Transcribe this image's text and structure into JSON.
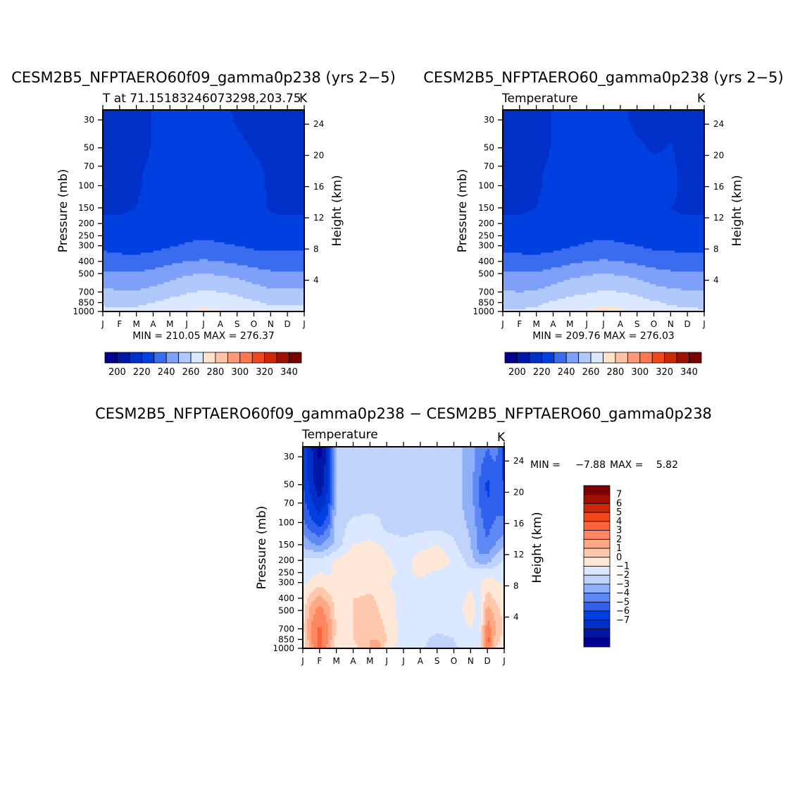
{
  "chart_data": [
    {
      "type": "heatmap",
      "id": "p1",
      "title": "CESM2B5_NFPTAERO60f09_gamma0p238 (yrs 2−5)",
      "subtitle_left": "T at 71.15183246073298,203.75",
      "subtitle_right": "K",
      "ylabel_left": "Pressure (mb)",
      "ylabel_right": "Height (km)",
      "x_ticks": [
        "J",
        "F",
        "M",
        "A",
        "M",
        "J",
        "J",
        "A",
        "S",
        "O",
        "N",
        "D",
        "J"
      ],
      "p_ticks": [
        30,
        50,
        70,
        100,
        150,
        200,
        250,
        300,
        400,
        500,
        700,
        850,
        1000
      ],
      "h_ticks": [
        4,
        8,
        12,
        16,
        20,
        24
      ],
      "ylim_mb": [
        1000,
        25
      ],
      "minmax": "MIN = 210.05 MAX = 276.37",
      "colorbar_labels": [
        "200",
        "220",
        "240",
        "260",
        "280",
        "300",
        "320",
        "340"
      ],
      "field": {
        "months": [
          0,
          1,
          2,
          3,
          4,
          5,
          6,
          7,
          8,
          9,
          10,
          11,
          12
        ],
        "levels": [
          1000,
          850,
          700,
          500,
          400,
          300,
          250,
          200,
          150,
          100,
          70,
          50,
          30,
          25
        ],
        "values": [
          [
            263,
            262,
            262,
            264,
            266,
            269,
            272,
            271,
            268,
            264,
            262,
            263,
            263
          ],
          [
            258,
            258,
            258,
            260,
            263,
            265,
            267,
            266,
            264,
            261,
            259,
            258,
            258
          ],
          [
            252,
            251,
            251,
            253,
            256,
            259,
            261,
            260,
            258,
            255,
            252,
            252,
            252
          ],
          [
            242,
            241,
            241,
            243,
            246,
            249,
            250,
            249,
            247,
            244,
            242,
            242,
            242
          ],
          [
            234,
            233,
            233,
            235,
            238,
            240,
            241,
            240,
            238,
            236,
            234,
            234,
            234
          ],
          [
            228,
            227,
            226,
            227,
            229,
            231,
            232,
            231,
            230,
            228,
            228,
            228,
            228
          ],
          [
            224,
            224,
            224,
            224,
            227,
            228,
            229,
            228,
            227,
            225,
            224,
            224,
            224
          ],
          [
            221,
            221,
            222,
            224,
            227,
            228,
            228,
            228,
            227,
            225,
            222,
            221,
            221
          ],
          [
            219,
            219,
            220,
            226,
            228,
            229,
            229,
            228,
            227,
            224,
            219,
            219,
            219
          ],
          [
            217,
            217,
            218,
            224,
            228,
            229,
            229,
            228,
            227,
            224,
            218,
            217,
            217
          ],
          [
            216,
            216,
            218,
            222,
            227,
            229,
            229,
            228,
            226,
            222,
            218,
            216,
            216
          ],
          [
            214,
            214,
            215,
            221,
            226,
            228,
            228,
            227,
            224,
            219,
            216,
            214,
            214
          ],
          [
            212,
            212,
            213,
            221,
            227,
            228,
            228,
            226,
            218,
            214,
            212,
            212,
            212
          ],
          [
            211,
            211,
            212,
            221,
            227,
            228,
            228,
            225,
            217,
            213,
            211,
            211,
            211
          ]
        ]
      }
    },
    {
      "type": "heatmap",
      "id": "p2",
      "title": "CESM2B5_NFPTAERO60_gamma0p238 (yrs 2−5)",
      "subtitle_left": "Temperature",
      "subtitle_right": "K",
      "ylabel_left": "Pressure (mb)",
      "ylabel_right": "Height (km)",
      "x_ticks": [
        "J",
        "F",
        "M",
        "A",
        "M",
        "J",
        "J",
        "A",
        "S",
        "O",
        "N",
        "D",
        "J"
      ],
      "p_ticks": [
        30,
        50,
        70,
        100,
        150,
        200,
        250,
        300,
        400,
        500,
        700,
        850,
        1000
      ],
      "h_ticks": [
        4,
        8,
        12,
        16,
        20,
        24
      ],
      "ylim_mb": [
        1000,
        25
      ],
      "minmax": "MIN = 209.76 MAX = 276.03",
      "colorbar_labels": [
        "200",
        "220",
        "240",
        "260",
        "280",
        "300",
        "320",
        "340"
      ],
      "field": {
        "months": [
          0,
          1,
          2,
          3,
          4,
          5,
          6,
          7,
          8,
          9,
          10,
          11,
          12
        ],
        "levels": [
          1000,
          850,
          700,
          500,
          400,
          300,
          250,
          200,
          150,
          100,
          70,
          50,
          30,
          25
        ],
        "values": [
          [
            261,
            261,
            262,
            265,
            268,
            271,
            273,
            272,
            268,
            264,
            262,
            262,
            261
          ],
          [
            257,
            257,
            258,
            261,
            264,
            266,
            267,
            266,
            264,
            261,
            259,
            258,
            257
          ],
          [
            251,
            250,
            251,
            254,
            257,
            259,
            261,
            260,
            258,
            254,
            252,
            251,
            251
          ],
          [
            241,
            241,
            241,
            244,
            247,
            249,
            250,
            249,
            247,
            244,
            242,
            241,
            241
          ],
          [
            233,
            233,
            233,
            235,
            238,
            240,
            241,
            240,
            238,
            235,
            234,
            233,
            233
          ],
          [
            227,
            227,
            226,
            227,
            229,
            231,
            232,
            231,
            230,
            228,
            228,
            227,
            227
          ],
          [
            223,
            223,
            224,
            225,
            227,
            228,
            229,
            228,
            226,
            224,
            223,
            223,
            223
          ],
          [
            221,
            221,
            222,
            224,
            227,
            228,
            228,
            228,
            226,
            224,
            221,
            221,
            221
          ],
          [
            219,
            219,
            220,
            226,
            228,
            229,
            229,
            228,
            226,
            224,
            220,
            219,
            219
          ],
          [
            217,
            217,
            218,
            224,
            228,
            229,
            229,
            228,
            227,
            226,
            222,
            217,
            217
          ],
          [
            216,
            216,
            218,
            222,
            227,
            229,
            229,
            228,
            226,
            224,
            222,
            216,
            216
          ],
          [
            214,
            214,
            215,
            221,
            226,
            228,
            228,
            227,
            223,
            218,
            221,
            214,
            214
          ],
          [
            212,
            212,
            213,
            221,
            227,
            228,
            228,
            225,
            216,
            212,
            216,
            212,
            212
          ],
          [
            211,
            211,
            212,
            221,
            227,
            228,
            228,
            225,
            215,
            211,
            214,
            211,
            211
          ]
        ]
      }
    },
    {
      "type": "heatmap",
      "id": "p3",
      "title": "CESM2B5_NFPTAERO60f09_gamma0p238 − CESM2B5_NFPTAERO60_gamma0p238",
      "subtitle_left": "Temperature",
      "subtitle_right": "K",
      "ylabel_left": "Pressure (mb)",
      "ylabel_right": "Height (km)",
      "x_ticks": [
        "J",
        "F",
        "M",
        "A",
        "M",
        "J",
        "J",
        "A",
        "S",
        "O",
        "N",
        "D",
        "J"
      ],
      "p_ticks": [
        30,
        50,
        70,
        100,
        150,
        200,
        250,
        300,
        400,
        500,
        700,
        850,
        1000
      ],
      "h_ticks": [
        4,
        8,
        12,
        16,
        20,
        24
      ],
      "ylim_mb": [
        1000,
        25
      ],
      "min_label": "MIN =",
      "min_value": "−7.88",
      "max_label": "MAX =",
      "max_value": "5.82",
      "colorbar_labels": [
        "7",
        "6",
        "5",
        "4",
        "3",
        "2",
        "1",
        "0",
        "−1",
        "−2",
        "−3",
        "−4",
        "−5",
        "−6",
        "−7"
      ],
      "field": {
        "months": [
          0,
          0.5,
          1,
          1.5,
          2,
          3,
          4,
          4.5,
          5,
          6,
          7,
          8,
          9,
          10,
          10.5,
          11,
          11.5,
          12
        ],
        "levels": [
          1000,
          850,
          700,
          500,
          400,
          300,
          250,
          200,
          150,
          100,
          70,
          50,
          30,
          25
        ],
        "values": [
          [
            1.2,
            3.5,
            5.5,
            3.5,
            1.2,
            1.5,
            3,
            3.5,
            1.5,
            0.2,
            0.2,
            -0.5,
            -0.2,
            0.6,
            0.2,
            5,
            2,
            1.2
          ],
          [
            1.5,
            4,
            5.5,
            4,
            1.5,
            2,
            3,
            3,
            2,
            0.5,
            0.3,
            -0.3,
            0,
            0.8,
            0.2,
            5.5,
            2.5,
            1.5
          ],
          [
            1.8,
            4.2,
            5.2,
            4,
            2,
            2,
            2.8,
            2.5,
            1.8,
            0.5,
            0.5,
            0.2,
            0.3,
            1,
            0.5,
            4.8,
            3,
            1.8
          ],
          [
            1.5,
            3.5,
            4.5,
            3.5,
            1.5,
            2,
            2.8,
            2,
            1.5,
            0.5,
            0.5,
            0.5,
            0.5,
            1.5,
            0.5,
            3.5,
            2.5,
            1.5
          ],
          [
            1.2,
            2.5,
            3.5,
            2.5,
            1.5,
            2,
            2.2,
            1.8,
            1.2,
            0.8,
            0.6,
            0.6,
            0.6,
            1.2,
            0.6,
            2.5,
            1.8,
            1.2
          ],
          [
            0.8,
            1.2,
            1.5,
            1.2,
            1,
            1.2,
            1.5,
            1.5,
            1,
            0.8,
            0.8,
            0.8,
            0.8,
            0.8,
            0.8,
            1.5,
            1.2,
            0.8
          ],
          [
            0.6,
            0.8,
            1,
            0.9,
            1.2,
            1.5,
            1.5,
            1.6,
            1.2,
            0.8,
            1.2,
            0.8,
            0.6,
            0.3,
            0.5,
            0.6,
            0.5,
            0.6
          ],
          [
            0.2,
            0.4,
            0.3,
            0.6,
            1.2,
            2,
            2,
            2,
            1.2,
            0.5,
            1.5,
            1.8,
            0.8,
            -0.5,
            -1.5,
            -1.5,
            -0.5,
            0.2
          ],
          [
            -1.2,
            -1.8,
            -2.2,
            -1.5,
            -0.6,
            1,
            1.2,
            1,
            0.6,
            0.2,
            0.6,
            1,
            0.2,
            -1,
            -2.5,
            -2.8,
            -2,
            -1.2
          ],
          [
            -2.8,
            -3.8,
            -4.5,
            -3.5,
            -0.5,
            0.2,
            0.3,
            0.2,
            -0.5,
            -0.5,
            -0.5,
            -0.5,
            -0.5,
            -1.2,
            -2.5,
            -3.5,
            -2.8,
            -2.8
          ],
          [
            -3.5,
            -4.8,
            -5.8,
            -4.5,
            -0.8,
            -0.4,
            -0.4,
            -0.4,
            -0.5,
            -0.5,
            -0.5,
            -0.5,
            -0.5,
            -1.5,
            -3,
            -4,
            -3.5,
            -3.5
          ],
          [
            -4,
            -5.5,
            -6.8,
            -5,
            -0.8,
            -0.5,
            -0.5,
            -0.5,
            -0.5,
            -0.5,
            -0.5,
            -0.5,
            -0.5,
            -1.5,
            -3,
            -4.2,
            -3.5,
            -4
          ],
          [
            -4.5,
            -5.8,
            -7.2,
            -5.5,
            -0.8,
            -0.5,
            -0.5,
            -0.5,
            -0.5,
            -0.5,
            -0.5,
            -0.5,
            -0.5,
            -1.5,
            -2.6,
            -3.2,
            -2.8,
            -4.5
          ],
          [
            -4.5,
            -5.8,
            -7.5,
            -5.5,
            -0.8,
            -0.5,
            -0.5,
            -0.5,
            -0.5,
            -0.5,
            -0.5,
            -0.5,
            -0.5,
            -1.5,
            -2.4,
            -3,
            -2.6,
            -4.5
          ]
        ]
      }
    }
  ],
  "colors": {
    "abs_fill": [
      "#000090",
      "#0018a8",
      "#0030c8",
      "#0040e0",
      "#3a6cf0",
      "#7ea0f8",
      "#b0c8fb",
      "#dbe8ff",
      "#ffe2cc",
      "#ffc2a4",
      "#ff9a78",
      "#ff7850",
      "#f04818",
      "#cc2808",
      "#a01000",
      "#780000"
    ],
    "diff_fill": [
      "#000090",
      "#0018a8",
      "#0030c8",
      "#0040e0",
      "#2f60ee",
      "#5e88f4",
      "#8fb0f8",
      "#c0d4fb",
      "#dbe8ff",
      "#ffe8d8",
      "#ffc8ac",
      "#ffa886",
      "#ff8660",
      "#ff6438",
      "#f04818",
      "#cc2808",
      "#a01000",
      "#780000"
    ]
  }
}
